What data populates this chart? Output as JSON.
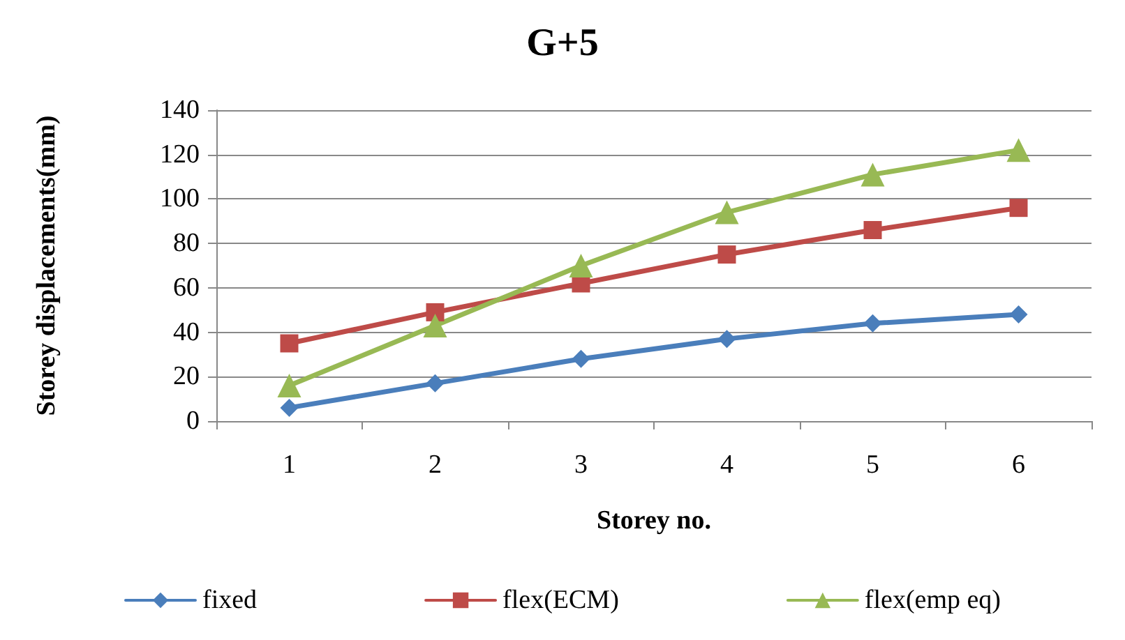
{
  "chart_data": {
    "type": "line",
    "title": "G+5",
    "xlabel": "Storey no.",
    "ylabel": "Storey displacements(mm)",
    "categories": [
      "1",
      "2",
      "3",
      "4",
      "5",
      "6"
    ],
    "series": [
      {
        "name": "fixed",
        "color": "#4a7ebb",
        "marker": "diamond",
        "values": [
          6,
          17,
          28,
          37,
          44,
          48
        ]
      },
      {
        "name": "flex(ECM)",
        "color": "#be4b48",
        "marker": "square",
        "values": [
          35,
          49,
          62,
          75,
          86,
          96
        ]
      },
      {
        "name": "flex(emp eq)",
        "color": "#98b954",
        "marker": "triangle",
        "values": [
          16,
          43,
          70,
          94,
          111,
          122
        ]
      }
    ],
    "ylim": [
      0,
      140
    ],
    "yticks": [
      0,
      20,
      40,
      60,
      80,
      100,
      120,
      140
    ],
    "grid": "y",
    "legend": "bottom",
    "line_style": "solid"
  }
}
